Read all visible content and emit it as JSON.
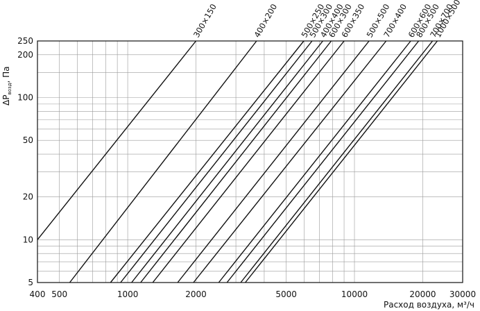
{
  "chart_data": {
    "type": "line",
    "title": "",
    "xlabel": "Расход воздуха, м³/ч",
    "ylabel_main": "ΔP",
    "ylabel_sub": "возд",
    "ylabel_unit": ", Па",
    "xscale": "log",
    "yscale": "log",
    "xlim": [
      400,
      30000
    ],
    "ylim": [
      5,
      250
    ],
    "grid": true,
    "legend": "none",
    "x_ticks": [
      {
        "value": 400,
        "label": "400"
      },
      {
        "value": 500,
        "label": "500"
      },
      {
        "value": 1000,
        "label": "1000"
      },
      {
        "value": 2000,
        "label": "2000"
      },
      {
        "value": 5000,
        "label": "5000"
      },
      {
        "value": 10000,
        "label": "10000"
      },
      {
        "value": 20000,
        "label": "20000"
      },
      {
        "value": 30000,
        "label": "30000"
      }
    ],
    "y_ticks": [
      {
        "value": 5,
        "label": "5"
      },
      {
        "value": 10,
        "label": "10"
      },
      {
        "value": 20,
        "label": "20"
      },
      {
        "value": 50,
        "label": "50"
      },
      {
        "value": 100,
        "label": "100"
      },
      {
        "value": 200,
        "label": "200"
      },
      {
        "value": 250,
        "label": "250"
      }
    ],
    "series": [
      {
        "name": "300×150",
        "points": [
          [
            400,
            10
          ],
          [
            2000,
            250
          ]
        ]
      },
      {
        "name": "400×200",
        "points": [
          [
            555,
            5
          ],
          [
            3700,
            250
          ]
        ]
      },
      {
        "name": "500×250",
        "points": [
          [
            840,
            5
          ],
          [
            5980,
            250
          ]
        ]
      },
      {
        "name": "500×300",
        "points": [
          [
            930,
            5
          ],
          [
            6500,
            250
          ]
        ]
      },
      {
        "name": "400×400",
        "points": [
          [
            1040,
            5
          ],
          [
            7250,
            250
          ]
        ]
      },
      {
        "name": "600×300",
        "points": [
          [
            1140,
            5
          ],
          [
            7900,
            250
          ]
        ]
      },
      {
        "name": "600×350",
        "points": [
          [
            1290,
            5
          ],
          [
            9000,
            250
          ]
        ]
      },
      {
        "name": "500×500",
        "points": [
          [
            1660,
            5
          ],
          [
            11600,
            250
          ]
        ]
      },
      {
        "name": "700×400",
        "points": [
          [
            1950,
            5
          ],
          [
            13800,
            250
          ]
        ]
      },
      {
        "name": "600×600",
        "points": [
          [
            2520,
            5
          ],
          [
            17700,
            250
          ]
        ]
      },
      {
        "name": "800×500",
        "points": [
          [
            2740,
            5
          ],
          [
            19200,
            250
          ]
        ]
      },
      {
        "name": "700×700",
        "points": [
          [
            3150,
            5
          ],
          [
            22100,
            250
          ]
        ]
      },
      {
        "name": "1000×500",
        "points": [
          [
            3300,
            5
          ],
          [
            23200,
            250
          ]
        ]
      }
    ]
  }
}
